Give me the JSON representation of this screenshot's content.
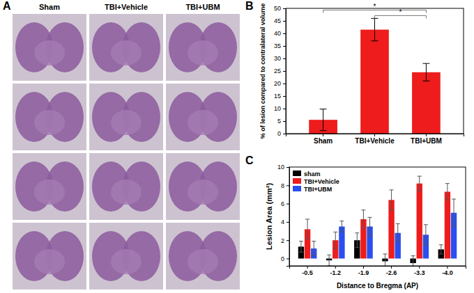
{
  "panel_a": {
    "panel_label": "A",
    "column_labels": [
      "Sham",
      "TBI+Vehicle",
      "TBI+UBM"
    ]
  },
  "chart_data": [
    {
      "type": "bar",
      "panel_label": "B",
      "y_label": "% of lesion compared to contralateral volume",
      "categories": [
        "Sham",
        "TBI+Vehicle",
        "TBI+UBM"
      ],
      "values": [
        5.5,
        41.5,
        24.5
      ],
      "errors": [
        4.3,
        4.5,
        3.5
      ],
      "color": "#ee1c1c",
      "ylim": [
        0,
        50
      ],
      "yticks": [
        0,
        5,
        10,
        15,
        20,
        25,
        30,
        35,
        40,
        45,
        50
      ],
      "annotations": [
        {
          "text": "*",
          "between": [
            "Sham",
            "TBI+UBM"
          ]
        },
        {
          "text": "*",
          "between": [
            "TBI+Vehicle",
            "TBI+UBM"
          ]
        }
      ]
    },
    {
      "type": "bar",
      "panel_label": "C",
      "x_label": "Distance to Bregma (AP)",
      "y_label": "Lesion Area (mm²)",
      "categories": [
        "-0.5",
        "-1.2",
        "-1.9",
        "-2.6",
        "-3.3",
        "-4.0"
      ],
      "series": [
        {
          "name": "sham",
          "color": "#000000",
          "values": [
            1.3,
            -0.2,
            2.0,
            -0.3,
            -0.5,
            1.0
          ],
          "errors": [
            0.6,
            0.6,
            0.8,
            0.8,
            0.8,
            0.5
          ]
        },
        {
          "name": "TBI+Vehicle",
          "color": "#ee1c1c",
          "values": [
            3.2,
            2.0,
            4.3,
            6.4,
            8.2,
            7.3
          ],
          "errors": [
            1.1,
            0.9,
            1.0,
            1.1,
            0.8,
            0.9
          ]
        },
        {
          "name": "TBI+UBM",
          "color": "#2a4ff0",
          "values": [
            1.1,
            3.5,
            3.5,
            2.8,
            2.6,
            5.0
          ],
          "errors": [
            0.8,
            0.6,
            1.0,
            1.0,
            1.1,
            1.5
          ]
        }
      ],
      "ylim": [
        -0.8,
        10
      ],
      "yticks": [
        0,
        2,
        4,
        6,
        8,
        10
      ],
      "legend": "top-left"
    }
  ]
}
